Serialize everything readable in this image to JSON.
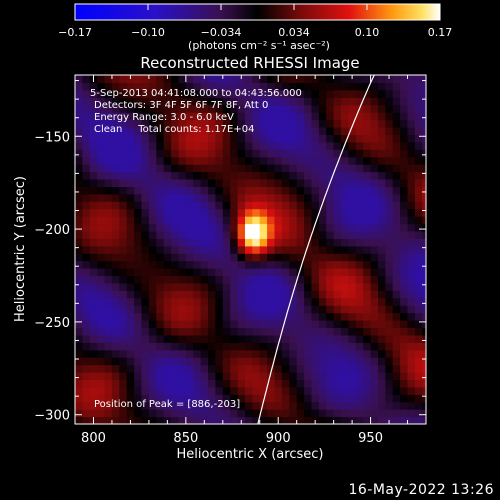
{
  "chart_data": {
    "type": "heatmap",
    "title": "Reconstructed RHESSI Image",
    "xlabel": "Heliocentric X (arcsec)",
    "ylabel": "Heliocentric Y (arcsec)",
    "xlim": [
      790,
      980
    ],
    "ylim": [
      -305,
      -117
    ],
    "xticks": [
      800,
      850,
      900,
      950
    ],
    "yticks": [
      -150,
      -200,
      -250,
      -300
    ],
    "colorbar": {
      "min": -0.17,
      "max": 0.17,
      "ticks": [
        "-0.17",
        "-0.10",
        "-0.034",
        "0.034",
        "0.10",
        "0.17"
      ],
      "label": "(photons cm⁻² s⁻¹ asec⁻²)"
    },
    "info_lines": [
      "5-Sep-2013 04:41:08.000 to 04:43:56.000",
      "Detectors: 3F 4F 5F 6F 7F 8F, Att 0",
      "Energy Range: 3.0 - 6.0 keV",
      "Clean     Total counts: 1.17E+04"
    ],
    "peak_text": "Position of Peak = [886,-203]",
    "peak": {
      "x": 886,
      "y": -203
    }
  },
  "footer": {
    "date": "16-May-2022 13:26"
  },
  "colors": {
    "background": "#000000",
    "text": "#ffffff"
  }
}
